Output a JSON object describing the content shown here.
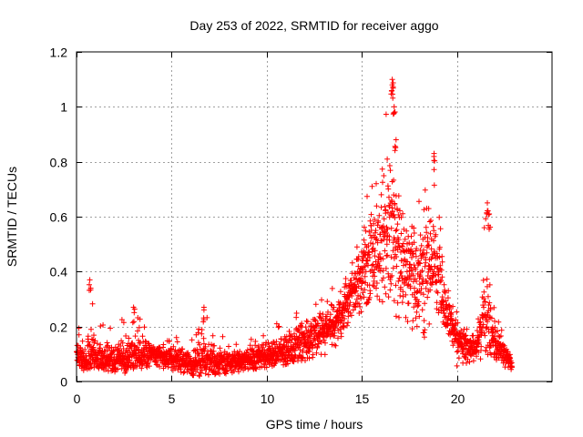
{
  "chart_data": {
    "type": "scatter",
    "title": "Day 253 of 2022, SRMTID for receiver aggo",
    "xlabel": "GPS time / hours",
    "ylabel": "SRMTID / TECUs",
    "xlim": [
      0,
      25
    ],
    "ylim": [
      0,
      1.2
    ],
    "xticks": [
      0,
      5,
      10,
      15,
      20
    ],
    "xtick_labels": [
      "0",
      "5",
      "10",
      "15",
      "20"
    ],
    "yticks": [
      0,
      0.2,
      0.4,
      0.6,
      0.8,
      1.0,
      1.2
    ],
    "ytick_labels": [
      "0",
      "0.2",
      "0.4",
      "0.6",
      "0.8",
      "1",
      "1.2"
    ],
    "grid": true,
    "marker": "+",
    "marker_color": "#ff0000",
    "series": [
      {
        "name": "SRMTID",
        "envelope_x": [
          0.0,
          0.5,
          0.7,
          1.0,
          2.0,
          3.0,
          4.0,
          5.0,
          6.0,
          7.0,
          8.0,
          9.0,
          10.0,
          11.0,
          12.0,
          13.0,
          14.0,
          14.5,
          15.0,
          15.5,
          16.0,
          16.5,
          17.0,
          17.5,
          18.0,
          18.5,
          19.0,
          19.5,
          20.0,
          20.5,
          21.0,
          21.5,
          22.0,
          22.5,
          22.9
        ],
        "envelope_low": [
          0.04,
          0.04,
          0.05,
          0.05,
          0.03,
          0.04,
          0.05,
          0.04,
          0.02,
          0.03,
          0.03,
          0.04,
          0.05,
          0.06,
          0.07,
          0.09,
          0.15,
          0.22,
          0.25,
          0.3,
          0.28,
          0.25,
          0.22,
          0.2,
          0.15,
          0.15,
          0.2,
          0.1,
          0.05,
          0.06,
          0.08,
          0.07,
          0.08,
          0.05,
          0.04
        ],
        "envelope_high": [
          0.21,
          0.15,
          0.37,
          0.2,
          0.22,
          0.27,
          0.18,
          0.17,
          0.16,
          0.27,
          0.15,
          0.15,
          0.18,
          0.24,
          0.3,
          0.33,
          0.35,
          0.45,
          0.65,
          0.78,
          0.88,
          1.1,
          0.72,
          0.6,
          0.7,
          0.85,
          0.64,
          0.4,
          0.25,
          0.2,
          0.16,
          0.65,
          0.28,
          0.17,
          0.08
        ],
        "typical": [
          0.1,
          0.08,
          0.12,
          0.1,
          0.08,
          0.11,
          0.1,
          0.09,
          0.07,
          0.08,
          0.07,
          0.08,
          0.1,
          0.12,
          0.15,
          0.18,
          0.25,
          0.33,
          0.4,
          0.48,
          0.52,
          0.58,
          0.48,
          0.4,
          0.42,
          0.48,
          0.4,
          0.25,
          0.15,
          0.13,
          0.12,
          0.25,
          0.15,
          0.11,
          0.06
        ]
      }
    ],
    "notable_points": [
      {
        "x": 0.7,
        "y": 0.37
      },
      {
        "x": 3.0,
        "y": 0.27
      },
      {
        "x": 6.7,
        "y": 0.27
      },
      {
        "x": 16.6,
        "y": 1.1
      },
      {
        "x": 16.6,
        "y": 1.08
      },
      {
        "x": 16.7,
        "y": 1.0
      },
      {
        "x": 16.8,
        "y": 0.88
      },
      {
        "x": 18.8,
        "y": 0.83
      },
      {
        "x": 21.6,
        "y": 0.65
      },
      {
        "x": 21.7,
        "y": 0.61
      }
    ]
  }
}
